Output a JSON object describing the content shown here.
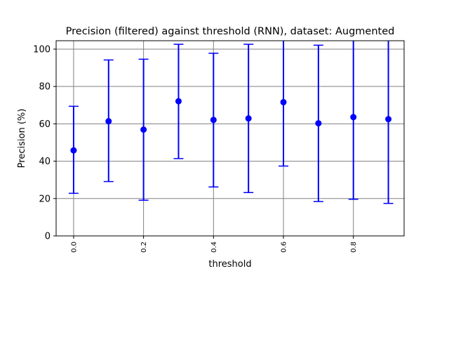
{
  "chart_data": {
    "type": "scatter",
    "title": "Precision (filtered) against threshold (RNN), dataset: Augmented",
    "xlabel": "threshold",
    "ylabel": "Precision (%)",
    "xlim": [
      -0.05,
      0.945
    ],
    "ylim": [
      0,
      104.5
    ],
    "x_ticks": [
      0.0,
      0.2,
      0.4,
      0.6,
      0.8
    ],
    "x_tick_labels": [
      "0.0",
      "0.2",
      "0.4",
      "0.6",
      "0.8"
    ],
    "y_ticks": [
      0,
      20,
      40,
      60,
      80,
      100
    ],
    "y_tick_labels": [
      "0",
      "20",
      "40",
      "60",
      "80",
      "100"
    ],
    "grid": true,
    "color": "#0000ff",
    "series": [
      {
        "x": [
          0.0,
          0.1,
          0.2,
          0.3,
          0.4,
          0.5,
          0.6,
          0.7,
          0.8,
          0.9
        ],
        "y": [
          45.8,
          61.4,
          56.9,
          72.1,
          62.1,
          62.9,
          71.6,
          60.3,
          63.6,
          62.5
        ],
        "err_low": [
          22.8,
          29.1,
          19.1,
          41.4,
          26.2,
          23.2,
          37.4,
          18.4,
          19.6,
          17.4
        ],
        "err_high": [
          69.4,
          94.2,
          94.6,
          102.6,
          97.8,
          102.6,
          105.5,
          102.1,
          107.0,
          107.0
        ]
      }
    ]
  }
}
